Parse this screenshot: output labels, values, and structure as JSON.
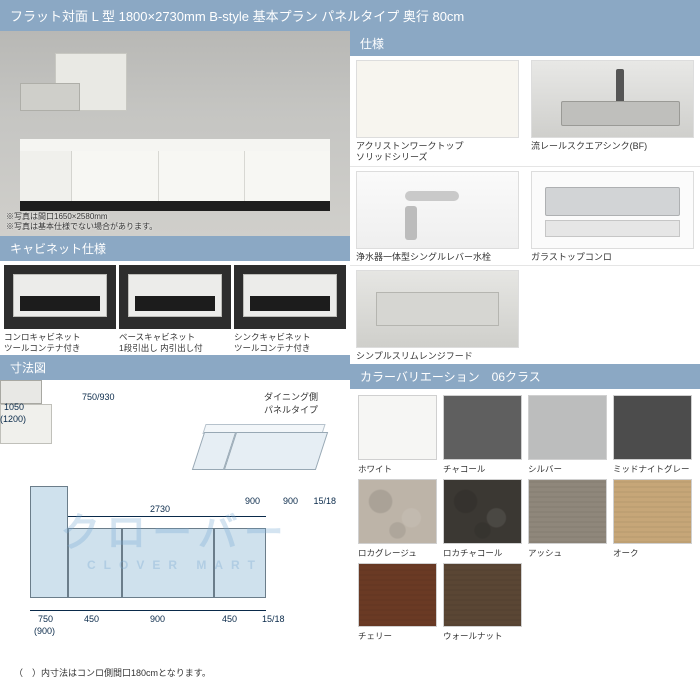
{
  "header": {
    "title": "フラット対面 L 型 1800×2730mm B-style 基本プラン パネルタイプ 奥行 80cm"
  },
  "colors": {
    "bar_bg": "#8ba8c4",
    "bar_text": "#ffffff",
    "line": "#0a2a4a"
  },
  "main_photo": {
    "caption_line1": "※写真は間口1650×2580mm",
    "caption_line2": "※写真は基本仕様でない場合があります。"
  },
  "spec": {
    "title": "仕様",
    "items": [
      {
        "key": "worktop",
        "label": "アクリストンワークトップ\nソリッドシリーズ",
        "thumb": "thumb-worktop"
      },
      {
        "key": "sink",
        "label": "流レールスクエアシンク(BF)",
        "thumb": "thumb-sink"
      },
      {
        "key": "faucet",
        "label": "浄水器一体型シングルレバー水栓",
        "thumb": "thumb-faucet"
      },
      {
        "key": "stove",
        "label": "ガラストップコンロ",
        "thumb": "thumb-stove"
      },
      {
        "key": "hood",
        "label": "シンプルスリムレンジフード",
        "thumb": "thumb-hood"
      }
    ]
  },
  "cabinet": {
    "title": "キャビネット仕様",
    "items": [
      {
        "label": "コンロキャビネット\nツールコンテナ付き"
      },
      {
        "label": "ベースキャビネット\n1段引出し 内引出し付"
      },
      {
        "label": "シンクキャビネット\nツールコンテナ付き"
      }
    ]
  },
  "dimensions": {
    "title": "寸法図",
    "iso_label": "ダイニング側\nパネルタイプ",
    "labels": {
      "depth_a": "1050",
      "depth_a_paren": "(1200)",
      "top_a": "750/930",
      "length": "2730",
      "iso_900a": "900",
      "iso_900b": "900",
      "iso_1518": "15/18",
      "b_750": "750",
      "b_750_paren": "(900)",
      "b_450a": "450",
      "b_900": "900",
      "b_450b": "450",
      "b_1518": "15/18"
    },
    "note": "（　）内寸法はコンロ側間口180cmとなります。",
    "watermark": "クローバー",
    "watermark_sub": "CLOVER  MART"
  },
  "color_var": {
    "title": "カラーバリエーション　06クラス",
    "swatches": [
      {
        "name": "ホワイト",
        "hex": "#f6f6f4",
        "tex": ""
      },
      {
        "name": "チャコール",
        "hex": "#5f5f5f",
        "tex": ""
      },
      {
        "name": "シルバー",
        "hex": "#bcbdbd",
        "tex": ""
      },
      {
        "name": "ミッドナイトグレー",
        "hex": "#4c4c4c",
        "tex": ""
      },
      {
        "name": "ロカグレージュ",
        "hex": "#bdb4a8",
        "tex": "tex-stone"
      },
      {
        "name": "ロカチャコール",
        "hex": "#3b3833",
        "tex": "tex-stone"
      },
      {
        "name": "アッシュ",
        "hex": "#8f877b",
        "tex": "tex-grain"
      },
      {
        "name": "オーク",
        "hex": "#c6a678",
        "tex": "tex-grain"
      },
      {
        "name": "チェリー",
        "hex": "#6a3a24",
        "tex": "tex-grain"
      },
      {
        "name": "ウォールナット",
        "hex": "#5a4634",
        "tex": "tex-grain"
      }
    ]
  }
}
